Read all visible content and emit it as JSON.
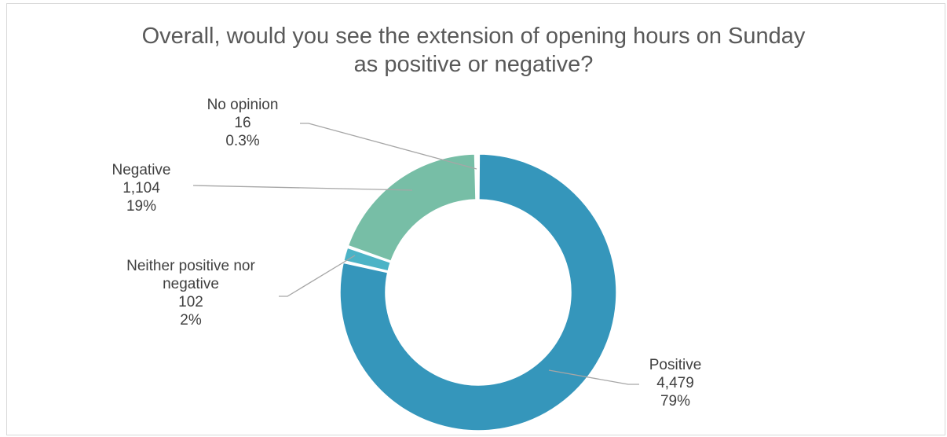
{
  "chart_data": {
    "type": "pie",
    "variant": "donut",
    "title_lines": [
      "Overall, would you see the extension of opening hours on Sunday",
      "as positive or negative?"
    ],
    "slices": [
      {
        "label": "Positive",
        "value": 4479,
        "value_label": "4,479",
        "percent_label": "79%",
        "color": "#3596bb"
      },
      {
        "label": "Neither positive nor negative",
        "label_lines": [
          "Neither positive nor",
          "negative"
        ],
        "value": 102,
        "value_label": "102",
        "percent_label": "2%",
        "color": "#4cb3c6"
      },
      {
        "label": "Negative",
        "value": 1104,
        "value_label": "1,104",
        "percent_label": "19%",
        "color": "#77bea6"
      },
      {
        "label": "No opinion",
        "value": 16,
        "value_label": "16",
        "percent_label": "0.3%",
        "color": "#a8d5ba"
      }
    ],
    "legend": "none",
    "leader_line_color": "#a6a6a6"
  }
}
